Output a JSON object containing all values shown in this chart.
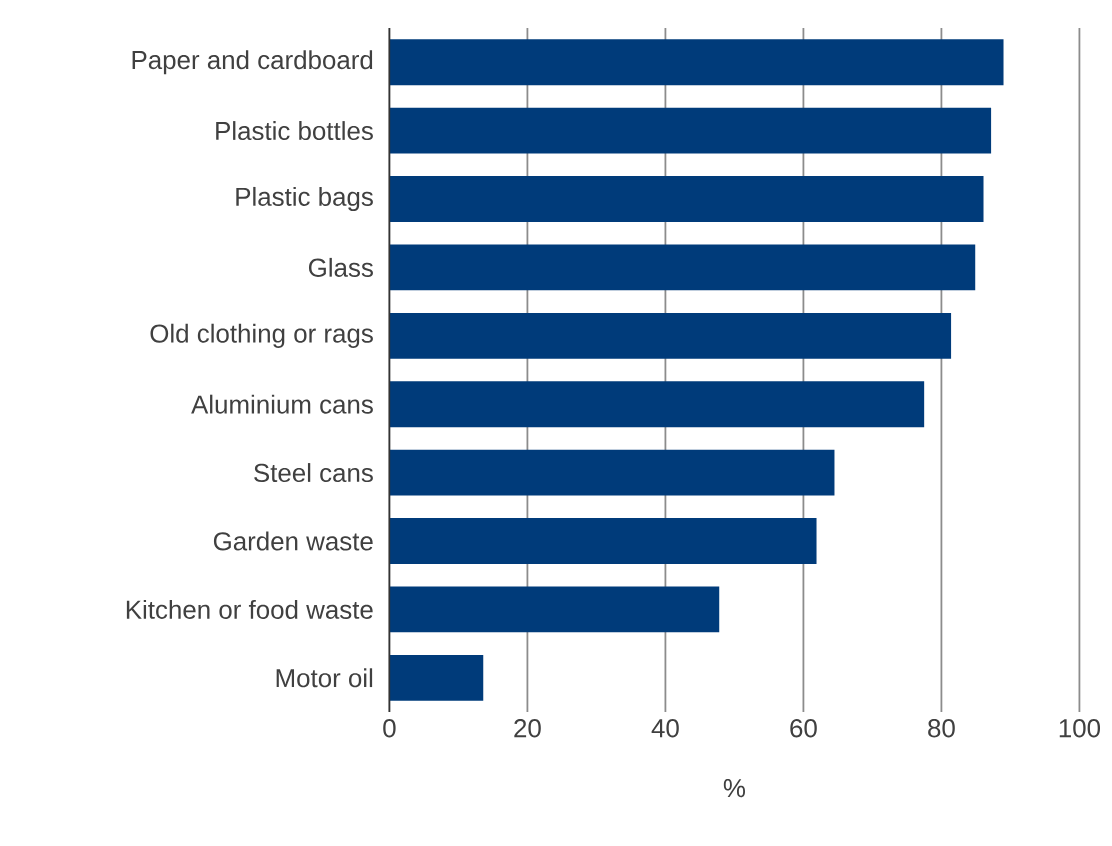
{
  "chart_data": {
    "type": "bar",
    "orientation": "horizontal",
    "xlabel": "%",
    "categories": [
      "Paper and cardboard",
      "Plastic bottles",
      "Plastic bags",
      "Glass",
      "Old clothing or rags",
      "Aluminium cans",
      "Steel cans",
      "Garden waste",
      "Kitchen or food waste",
      "Motor oil"
    ],
    "values": [
      89.0,
      87.2,
      86.1,
      84.9,
      81.4,
      77.5,
      64.5,
      61.9,
      47.8,
      13.6
    ],
    "color": "#003b7a",
    "xlim": [
      0,
      100
    ],
    "xticks": [
      0,
      20,
      40,
      60,
      80,
      100
    ],
    "grid": "x"
  }
}
